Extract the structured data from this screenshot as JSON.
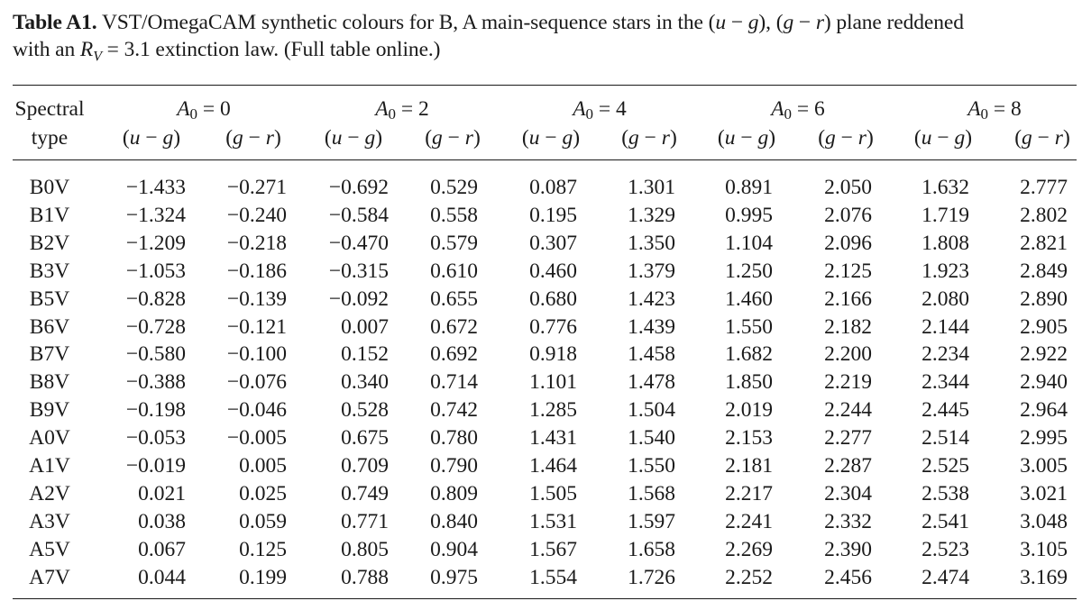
{
  "caption": {
    "label": "Table A1.",
    "text_line1": "VST/OmegaCAM synthetic colours for B, A main-sequence stars in the (",
    "u": "u",
    "minus": " − ",
    "g": "g",
    "sep": "), (",
    "g2": "g",
    "minus2": " − ",
    "r": "r",
    "text_line1_end": ") plane reddened",
    "text_line2_start": "with an ",
    "rv": "R",
    "rv_sub": "V",
    "text_line2_end": " = 3.1 extinction law. (Full table online.)"
  },
  "table": {
    "stub_header_line1": "Spectral",
    "stub_header_line2": "type",
    "groups": [
      "A0 = 0",
      "A0 = 2",
      "A0 = 4",
      "A0 = 6",
      "A0 = 8"
    ],
    "subcols": [
      "(u − g)",
      "(g − r)"
    ],
    "rows": [
      {
        "type": "B0V",
        "v": [
          "−1.433",
          "−0.271",
          "−0.692",
          "0.529",
          "0.087",
          "1.301",
          "0.891",
          "2.050",
          "1.632",
          "2.777"
        ]
      },
      {
        "type": "B1V",
        "v": [
          "−1.324",
          "−0.240",
          "−0.584",
          "0.558",
          "0.195",
          "1.329",
          "0.995",
          "2.076",
          "1.719",
          "2.802"
        ]
      },
      {
        "type": "B2V",
        "v": [
          "−1.209",
          "−0.218",
          "−0.470",
          "0.579",
          "0.307",
          "1.350",
          "1.104",
          "2.096",
          "1.808",
          "2.821"
        ]
      },
      {
        "type": "B3V",
        "v": [
          "−1.053",
          "−0.186",
          "−0.315",
          "0.610",
          "0.460",
          "1.379",
          "1.250",
          "2.125",
          "1.923",
          "2.849"
        ]
      },
      {
        "type": "B5V",
        "v": [
          "−0.828",
          "−0.139",
          "−0.092",
          "0.655",
          "0.680",
          "1.423",
          "1.460",
          "2.166",
          "2.080",
          "2.890"
        ]
      },
      {
        "type": "B6V",
        "v": [
          "−0.728",
          "−0.121",
          "0.007",
          "0.672",
          "0.776",
          "1.439",
          "1.550",
          "2.182",
          "2.144",
          "2.905"
        ]
      },
      {
        "type": "B7V",
        "v": [
          "−0.580",
          "−0.100",
          "0.152",
          "0.692",
          "0.918",
          "1.458",
          "1.682",
          "2.200",
          "2.234",
          "2.922"
        ]
      },
      {
        "type": "B8V",
        "v": [
          "−0.388",
          "−0.076",
          "0.340",
          "0.714",
          "1.101",
          "1.478",
          "1.850",
          "2.219",
          "2.344",
          "2.940"
        ]
      },
      {
        "type": "B9V",
        "v": [
          "−0.198",
          "−0.046",
          "0.528",
          "0.742",
          "1.285",
          "1.504",
          "2.019",
          "2.244",
          "2.445",
          "2.964"
        ]
      },
      {
        "type": "A0V",
        "v": [
          "−0.053",
          "−0.005",
          "0.675",
          "0.780",
          "1.431",
          "1.540",
          "2.153",
          "2.277",
          "2.514",
          "2.995"
        ]
      },
      {
        "type": "A1V",
        "v": [
          "−0.019",
          "0.005",
          "0.709",
          "0.790",
          "1.464",
          "1.550",
          "2.181",
          "2.287",
          "2.525",
          "3.005"
        ]
      },
      {
        "type": "A2V",
        "v": [
          "0.021",
          "0.025",
          "0.749",
          "0.809",
          "1.505",
          "1.568",
          "2.217",
          "2.304",
          "2.538",
          "3.021"
        ]
      },
      {
        "type": "A3V",
        "v": [
          "0.038",
          "0.059",
          "0.771",
          "0.840",
          "1.531",
          "1.597",
          "2.241",
          "2.332",
          "2.541",
          "3.048"
        ]
      },
      {
        "type": "A5V",
        "v": [
          "0.067",
          "0.125",
          "0.805",
          "0.904",
          "1.567",
          "1.658",
          "2.269",
          "2.390",
          "2.523",
          "3.105"
        ]
      },
      {
        "type": "A7V",
        "v": [
          "0.044",
          "0.199",
          "0.788",
          "0.975",
          "1.554",
          "1.726",
          "2.252",
          "2.456",
          "2.474",
          "3.169"
        ]
      }
    ]
  }
}
